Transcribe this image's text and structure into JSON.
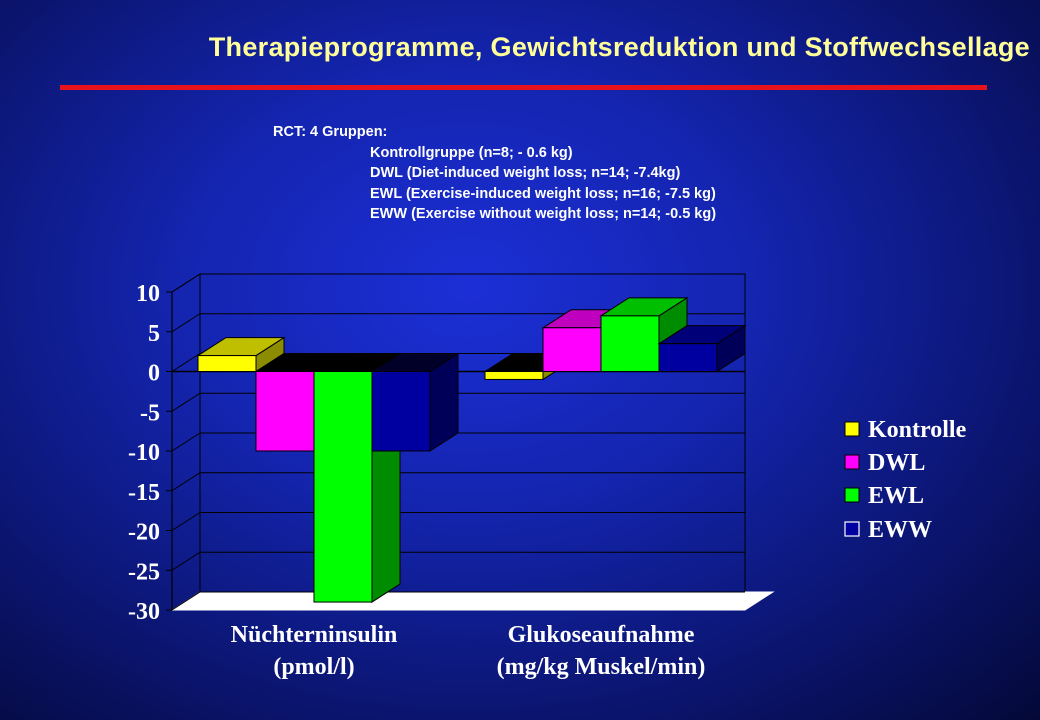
{
  "slide": {
    "title": "Therapieprogramme,  Gewichtsreduktion  und  Stoffwechsellage",
    "notes": {
      "heading": "RCT: 4 Gruppen:",
      "groups": [
        "Kontrollgruppe (n=8; - 0.6 kg)",
        "DWL (Diet-induced weight loss; n=14; -7.4kg)",
        "EWL (Exercise-induced weight loss; n=16; -7.5 kg)",
        "EWW (Exercise without weight loss; n=14; -0.5 kg)"
      ]
    }
  },
  "chart_data": {
    "type": "bar",
    "style": "3d-clustered-column",
    "categories": [
      {
        "line1": "Nüchterninsulin",
        "line2": "(pmol/l)"
      },
      {
        "line1": "Glukoseaufnahme",
        "line2": "(mg/kg Muskel/min)"
      }
    ],
    "series": [
      {
        "name": "Kontrolle",
        "color": "#ffff00",
        "values": [
          2,
          -1
        ]
      },
      {
        "name": "DWL",
        "color": "#ff00ff",
        "values": [
          -10,
          5.5
        ]
      },
      {
        "name": "EWL",
        "color": "#00ff00",
        "values": [
          -29,
          7
        ]
      },
      {
        "name": "EWW",
        "color": "#0000a0",
        "values": [
          -10,
          3.5
        ]
      }
    ],
    "ylim": [
      -30,
      10
    ],
    "yticks": [
      "10",
      "5",
      "0",
      "-5",
      "-10",
      "-15",
      "-20",
      "-25",
      "-30"
    ],
    "grid": true,
    "legend_position": "right"
  }
}
